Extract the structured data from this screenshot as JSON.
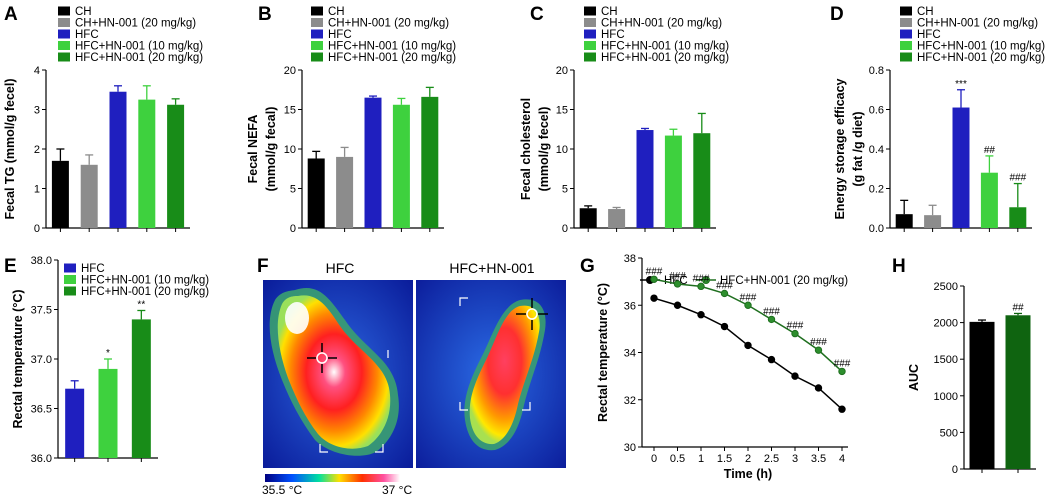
{
  "colors": {
    "CH": "#000000",
    "CH+HN-001 (20 mg/kg)": "#8c8c8c",
    "HFC": "#1f1fbf",
    "HFC+HN-001 (10 mg/kg)": "#3ed13e",
    "HFC+HN-001 (20 mg/kg)": "#188c18",
    "g_hfc_line": "#000000",
    "g_treat_line": "#1f6f1f",
    "h_hfc": "#000000",
    "h_treat": "#0f6410"
  },
  "panels": {
    "F": {
      "letter": "F",
      "left_title": "HFC",
      "right_title": "HFC+HN-001",
      "colorbar_min_label": "35.5 °C",
      "colorbar_max_label": "37 °C"
    }
  },
  "chart_data": [
    {
      "id": "A",
      "letter": "A",
      "type": "bar",
      "legend": [
        "CH",
        "CH+HN-001 (20 mg/kg)",
        "HFC",
        "HFC+HN-001 (10 mg/kg)",
        "HFC+HN-001 (20 mg/kg)"
      ],
      "categories": [
        "CH",
        "CH+HN-001 (20 mg/kg)",
        "HFC",
        "HFC+HN-001 (10 mg/kg)",
        "HFC+HN-001 (20 mg/kg)"
      ],
      "values": [
        1.7,
        1.6,
        3.45,
        3.25,
        3.12
      ],
      "errors": [
        0.3,
        0.25,
        0.15,
        0.35,
        0.15
      ],
      "annotations": [
        "",
        "",
        "",
        "",
        ""
      ],
      "ylabel_lines": [
        "Fecal TG (mmol/g fecel)"
      ],
      "ylim": [
        0,
        4
      ],
      "yticks": [
        "0",
        "1",
        "2",
        "3",
        "4"
      ]
    },
    {
      "id": "B",
      "letter": "B",
      "type": "bar",
      "legend": [
        "CH",
        "CH+HN-001 (20 mg/kg)",
        "HFC",
        "HFC+HN-001 (10 mg/kg)",
        "HFC+HN-001 (20 mg/kg)"
      ],
      "categories": [
        "CH",
        "CH+HN-001 (20 mg/kg)",
        "HFC",
        "HFC+HN-001 (10 mg/kg)",
        "HFC+HN-001 (20 mg/kg)"
      ],
      "values": [
        8.8,
        9.0,
        16.5,
        15.6,
        16.6
      ],
      "errors": [
        0.9,
        1.2,
        0.2,
        0.8,
        1.2
      ],
      "annotations": [
        "",
        "",
        "",
        "",
        ""
      ],
      "ylabel_lines": [
        "Fecal NEFA",
        "(mmol/g fecal)"
      ],
      "ylim": [
        0,
        20
      ],
      "yticks": [
        "0",
        "5",
        "10",
        "15",
        "20"
      ]
    },
    {
      "id": "C",
      "letter": "C",
      "type": "bar",
      "legend": [
        "CH",
        "CH+HN-001 (20 mg/kg)",
        "HFC",
        "HFC+HN-001 (10 mg/kg)",
        "HFC+HN-001 (20 mg/kg)"
      ],
      "categories": [
        "CH",
        "CH+HN-001 (20 mg/kg)",
        "HFC",
        "HFC+HN-001 (10 mg/kg)",
        "HFC+HN-001 (20 mg/kg)"
      ],
      "values": [
        2.5,
        2.4,
        12.4,
        11.7,
        12.0
      ],
      "errors": [
        0.3,
        0.2,
        0.2,
        0.8,
        2.5
      ],
      "annotations": [
        "",
        "",
        "",
        "",
        ""
      ],
      "ylabel_lines": [
        "Fecal cholesterol",
        "(mmol/g fecel)"
      ],
      "ylim": [
        0,
        20
      ],
      "yticks": [
        "0",
        "5",
        "10",
        "15",
        "20"
      ]
    },
    {
      "id": "D",
      "letter": "D",
      "type": "bar",
      "legend": [
        "CH",
        "CH+HN-001 (20 mg/kg)",
        "HFC",
        "HFC+HN-001 (10 mg/kg)",
        "HFC+HN-001 (20 mg/kg)"
      ],
      "categories": [
        "CH",
        "CH+HN-001 (20 mg/kg)",
        "HFC",
        "HFC+HN-001 (10 mg/kg)",
        "HFC+HN-001 (20 mg/kg)"
      ],
      "values": [
        0.07,
        0.065,
        0.61,
        0.28,
        0.105
      ],
      "errors": [
        0.07,
        0.05,
        0.09,
        0.085,
        0.12
      ],
      "annotations": [
        "",
        "",
        "***",
        "##",
        "###"
      ],
      "ylabel_lines": [
        "Energy storage efficacy",
        "(g fat /g diet)"
      ],
      "ylim": [
        0,
        0.8
      ],
      "yticks": [
        "0.0",
        "0.2",
        "0.4",
        "0.6",
        "0.8"
      ]
    },
    {
      "id": "E",
      "letter": "E",
      "type": "bar",
      "legend": [
        "HFC",
        "HFC+HN-001 (10 mg/kg)",
        "HFC+HN-001 (20 mg/kg)"
      ],
      "categories": [
        "HFC",
        "HFC+HN-001 (10 mg/kg)",
        "HFC+HN-001 (20 mg/kg)"
      ],
      "values": [
        36.7,
        36.9,
        37.4
      ],
      "errors": [
        0.08,
        0.1,
        0.09
      ],
      "annotations": [
        "",
        "*",
        "**"
      ],
      "ylabel_lines": [
        "Rectal temperature (°C)"
      ],
      "ylim": [
        36.0,
        38.0
      ],
      "yticks": [
        "36.0",
        "36.5",
        "37.0",
        "37.5",
        "38.0"
      ]
    },
    {
      "id": "G",
      "letter": "G",
      "type": "line",
      "x": [
        0,
        0.5,
        1,
        1.5,
        2,
        2.5,
        3,
        3.5,
        4
      ],
      "xticks": [
        "0",
        "0.5",
        "1",
        "1.5",
        "2",
        "2.5",
        "3",
        "3.5",
        "4"
      ],
      "series": [
        {
          "name": "HFC",
          "values": [
            36.3,
            36.0,
            35.6,
            35.1,
            34.3,
            33.7,
            33.0,
            32.5,
            31.6
          ]
        },
        {
          "name": "HFC+HN-001 (20 mg/kg)",
          "values": [
            37.1,
            36.9,
            36.8,
            36.5,
            36.0,
            35.4,
            34.8,
            34.1,
            33.2
          ],
          "annotations": [
            "###",
            "###",
            "###",
            "###",
            "###",
            "###",
            "###",
            "###",
            "###"
          ]
        }
      ],
      "xlabel": "Time (h)",
      "ylabel": "Rectal temperature (°C)",
      "xlim": [
        0,
        4
      ],
      "ylim": [
        30,
        38
      ],
      "yticks": [
        "30",
        "32",
        "34",
        "36",
        "38"
      ]
    },
    {
      "id": "H",
      "letter": "H",
      "type": "bar",
      "categories": [
        "HFC",
        "HFC+HN-001 (20 mg/kg)"
      ],
      "values": [
        2010,
        2100
      ],
      "errors": [
        25,
        25
      ],
      "annotations": [
        "",
        "##"
      ],
      "ylabel": "AUC",
      "ylim": [
        0,
        2500
      ],
      "yticks": [
        "0",
        "500",
        "1000",
        "1500",
        "2000",
        "2500"
      ]
    }
  ]
}
